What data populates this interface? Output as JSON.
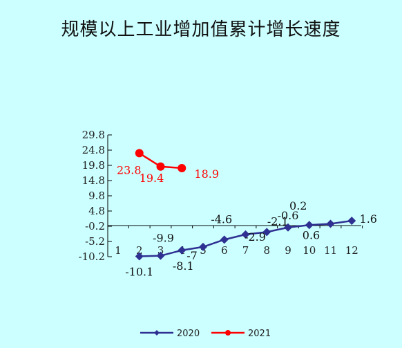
{
  "title": "规模以上工业增加值累计增长速度",
  "chart_data": {
    "type": "line",
    "title": "规模以上工业增加值累计增长速度",
    "xlabel": "",
    "ylabel": "",
    "categories": [
      "1",
      "2",
      "3",
      "4",
      "5",
      "6",
      "7",
      "8",
      "9",
      "10",
      "11",
      "12"
    ],
    "yticks": [
      "29.8",
      "24.8",
      "19.8",
      "14.8",
      "9.8",
      "4.8",
      "-0.2",
      "-5.2",
      "-10.2"
    ],
    "ylim": [
      -10.2,
      29.8
    ],
    "grid": false,
    "legend_position": "bottom",
    "series": [
      {
        "name": "2020",
        "color": "#2e3192",
        "marker": "diamond",
        "x": [
          "2",
          "3",
          "4",
          "5",
          "6",
          "7",
          "8",
          "9",
          "10",
          "11",
          "12"
        ],
        "values": [
          -10.1,
          -9.9,
          -8.1,
          -7,
          -4.6,
          -2.9,
          -2.1,
          -0.6,
          0.2,
          0.6,
          1.6
        ],
        "labels": [
          "-10.1",
          "-9.9",
          "-8.1",
          "-7",
          "-4.6",
          "-2.9",
          "-2.1",
          "-0.6",
          "0.2",
          "0.6",
          "1.6"
        ]
      },
      {
        "name": "2021",
        "color": "#ff0000",
        "marker": "circle",
        "x": [
          "2",
          "3",
          "4"
        ],
        "values": [
          23.8,
          19.4,
          18.9
        ],
        "labels": [
          "23.8",
          "19.4",
          "18.9"
        ]
      }
    ]
  }
}
